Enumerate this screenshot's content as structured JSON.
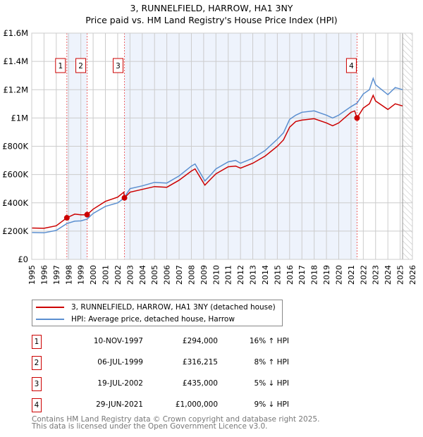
{
  "title_line1": "3, RUNNELFIELD, HARROW, HA1 3NY",
  "title_line2": "Price paid vs. HM Land Registry's House Price Index (HPI)",
  "chart_data": {
    "type": "line",
    "xlim": [
      1995,
      2026
    ],
    "ylim": [
      0,
      1600000
    ],
    "x_ticks": [
      "1995",
      "1996",
      "1997",
      "1998",
      "1999",
      "2000",
      "2001",
      "2002",
      "2003",
      "2004",
      "2005",
      "2006",
      "2007",
      "2008",
      "2009",
      "2010",
      "2011",
      "2012",
      "2013",
      "2014",
      "2015",
      "2016",
      "2017",
      "2018",
      "2019",
      "2020",
      "2021",
      "2022",
      "2023",
      "2024",
      "2025",
      "2026"
    ],
    "y_ticks": [
      {
        "v": 0,
        "label": "£0"
      },
      {
        "v": 200000,
        "label": "£200K"
      },
      {
        "v": 400000,
        "label": "£400K"
      },
      {
        "v": 600000,
        "label": "£600K"
      },
      {
        "v": 800000,
        "label": "£800K"
      },
      {
        "v": 1000000,
        "label": "£1M"
      },
      {
        "v": 1200000,
        "label": "£1.2M"
      },
      {
        "v": 1400000,
        "label": "£1.4M"
      },
      {
        "v": 1600000,
        "label": "£1.6M"
      }
    ],
    "colors": {
      "property": "#cc0000",
      "hpi": "#5b8fd0",
      "shade": "#eef3fc"
    },
    "series": [
      {
        "name": "3, RUNNELFIELD, HARROW, HA1 3NY (detached house)",
        "points": [
          [
            1995,
            222
          ],
          [
            1996,
            220
          ],
          [
            1997,
            238
          ],
          [
            1997.86,
            294
          ],
          [
            1998.5,
            320
          ],
          [
            1999,
            315
          ],
          [
            1999.51,
            316
          ],
          [
            2000,
            355
          ],
          [
            2001,
            410
          ],
          [
            2002,
            440
          ],
          [
            2002.5,
            475
          ],
          [
            2002.55,
            435
          ],
          [
            2003,
            475
          ],
          [
            2004,
            495
          ],
          [
            2005,
            515
          ],
          [
            2006,
            510
          ],
          [
            2007,
            560
          ],
          [
            2008,
            625
          ],
          [
            2008.3,
            640
          ],
          [
            2009.1,
            525
          ],
          [
            2009.6,
            570
          ],
          [
            2010,
            605
          ],
          [
            2011,
            655
          ],
          [
            2011.6,
            660
          ],
          [
            2012,
            645
          ],
          [
            2013,
            680
          ],
          [
            2014,
            730
          ],
          [
            2015,
            800
          ],
          [
            2015.5,
            845
          ],
          [
            2016,
            935
          ],
          [
            2016.5,
            975
          ],
          [
            2017,
            985
          ],
          [
            2018,
            995
          ],
          [
            2019,
            965
          ],
          [
            2019.5,
            945
          ],
          [
            2020,
            965
          ],
          [
            2021,
            1040
          ],
          [
            2021.3,
            1050
          ],
          [
            2021.49,
            1000
          ],
          [
            2022,
            1070
          ],
          [
            2022.5,
            1100
          ],
          [
            2022.8,
            1160
          ],
          [
            2023,
            1120
          ],
          [
            2024,
            1060
          ],
          [
            2024.6,
            1100
          ],
          [
            2025,
            1090
          ],
          [
            2025.2,
            1085
          ]
        ]
      },
      {
        "name": "HPI: Average price, detached house, Harrow",
        "points": [
          [
            1995,
            190
          ],
          [
            1996,
            188
          ],
          [
            1997,
            205
          ],
          [
            1997.86,
            253
          ],
          [
            1998.5,
            270
          ],
          [
            1999,
            272
          ],
          [
            1999.51,
            285
          ],
          [
            2000,
            325
          ],
          [
            2001,
            375
          ],
          [
            2002,
            400
          ],
          [
            2002.5,
            432
          ],
          [
            2003,
            500
          ],
          [
            2004,
            520
          ],
          [
            2005,
            545
          ],
          [
            2006,
            540
          ],
          [
            2007,
            590
          ],
          [
            2008,
            660
          ],
          [
            2008.3,
            675
          ],
          [
            2009.1,
            555
          ],
          [
            2009.6,
            600
          ],
          [
            2010,
            640
          ],
          [
            2011,
            690
          ],
          [
            2011.6,
            700
          ],
          [
            2012,
            680
          ],
          [
            2013,
            715
          ],
          [
            2014,
            770
          ],
          [
            2015,
            850
          ],
          [
            2015.5,
            895
          ],
          [
            2016,
            990
          ],
          [
            2016.5,
            1020
          ],
          [
            2017,
            1040
          ],
          [
            2018,
            1050
          ],
          [
            2019,
            1020
          ],
          [
            2019.5,
            1000
          ],
          [
            2020,
            1020
          ],
          [
            2021,
            1080
          ],
          [
            2021.49,
            1105
          ],
          [
            2022,
            1170
          ],
          [
            2022.5,
            1200
          ],
          [
            2022.8,
            1280
          ],
          [
            2023,
            1235
          ],
          [
            2024,
            1165
          ],
          [
            2024.6,
            1215
          ],
          [
            2025,
            1205
          ],
          [
            2025.2,
            1200
          ]
        ]
      }
    ],
    "sales": [
      {
        "n": "1",
        "x": 1997.86,
        "v": 294
      },
      {
        "n": "2",
        "x": 1999.51,
        "v": 316.215
      },
      {
        "n": "3",
        "x": 2002.55,
        "v": 435
      },
      {
        "n": "4",
        "x": 2021.49,
        "v": 1000
      }
    ],
    "forecast_from": 2025.2
  },
  "legend": [
    "3, RUNNELFIELD, HARROW, HA1 3NY (detached house)",
    "HPI: Average price, detached house, Harrow"
  ],
  "table": [
    {
      "n": "1",
      "date": "10-NOV-1997",
      "price": "£294,000",
      "hpi": "16% ↑ HPI"
    },
    {
      "n": "2",
      "date": "06-JUL-1999",
      "price": "£316,215",
      "hpi": "8% ↑ HPI"
    },
    {
      "n": "3",
      "date": "19-JUL-2002",
      "price": "£435,000",
      "hpi": "5% ↓ HPI"
    },
    {
      "n": "4",
      "date": "29-JUN-2021",
      "price": "£1,000,000",
      "hpi": "9% ↓ HPI"
    }
  ],
  "footer1": "Contains HM Land Registry data © Crown copyright and database right 2025.",
  "footer2": "This data is licensed under the Open Government Licence v3.0."
}
